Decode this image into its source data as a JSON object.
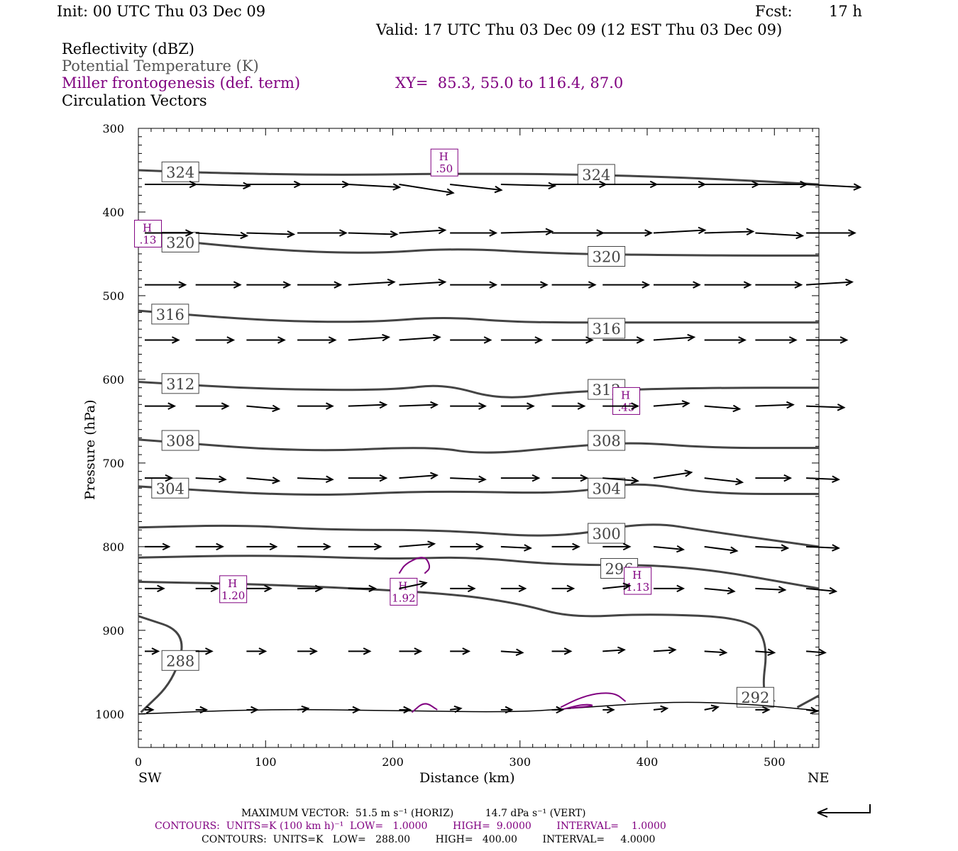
{
  "header": {
    "init": "Init: 00 UTC Thu 03 Dec 09",
    "fcst_label": "Fcst:",
    "fcst_value": "17 h",
    "valid": "Valid: 17 UTC Thu 03 Dec 09 (12 EST Thu 03 Dec 09)",
    "field1": "Reflectivity (dBZ)",
    "field2": "Potential Temperature (K)",
    "field3": "Miller frontogenesis (def. term)",
    "xy": "XY=  85.3, 55.0 to 116.4, 87.0",
    "field4": "Circulation Vectors"
  },
  "footer": {
    "max_vector": "MAXIMUM VECTOR:  51.5 m s⁻¹ (HORIZ)          14.7 dPa s⁻¹ (VERT)",
    "contours1": "CONTOURS:  UNITS=K (100 km h)⁻¹  LOW=   1.0000        HIGH=  9.0000        INTERVAL=    1.0000",
    "contours2": "CONTOURS:  UNITS=K   LOW=   288.00        HIGH=   400.00        INTERVAL=     4.0000"
  },
  "colors": {
    "theta": "#444444",
    "frontogenesis": "#800080",
    "vector": "#000000"
  },
  "chart_data": {
    "type": "cross-section",
    "xlabel": "Distance (km)",
    "ylabel": "Pressure (hPa)",
    "xlim": [
      0,
      535
    ],
    "ylim": [
      1040,
      300
    ],
    "x_ticks": [
      0,
      100,
      200,
      300,
      400,
      500
    ],
    "y_ticks": [
      300,
      400,
      500,
      600,
      700,
      800,
      900,
      1000
    ],
    "x_end_labels": {
      "left": "SW",
      "right": "NE"
    },
    "theta_contours": [
      {
        "value": 324,
        "label": "324",
        "points": [
          [
            0,
            350
          ],
          [
            50,
            353
          ],
          [
            150,
            356
          ],
          [
            250,
            354
          ],
          [
            350,
            355
          ],
          [
            450,
            360
          ],
          [
            535,
            367
          ]
        ],
        "labels_at": [
          [
            33,
            352
          ],
          [
            360,
            355
          ]
        ]
      },
      {
        "value": 320,
        "label": "320",
        "points": [
          [
            0,
            430
          ],
          [
            100,
            445
          ],
          [
            180,
            450
          ],
          [
            250,
            443
          ],
          [
            330,
            450
          ],
          [
            450,
            452
          ],
          [
            535,
            452
          ]
        ],
        "labels_at": [
          [
            33,
            436
          ],
          [
            368,
            453
          ]
        ]
      },
      {
        "value": 316,
        "label": "316",
        "points": [
          [
            0,
            518
          ],
          [
            100,
            530
          ],
          [
            180,
            532
          ],
          [
            240,
            525
          ],
          [
            300,
            532
          ],
          [
            380,
            532
          ],
          [
            535,
            532
          ]
        ],
        "labels_at": [
          [
            25,
            522
          ],
          [
            368,
            539
          ]
        ]
      },
      {
        "value": 312,
        "label": "312",
        "points": [
          [
            0,
            603
          ],
          [
            100,
            612
          ],
          [
            200,
            613
          ],
          [
            240,
            605
          ],
          [
            285,
            625
          ],
          [
            340,
            614
          ],
          [
            450,
            610
          ],
          [
            535,
            610
          ]
        ],
        "labels_at": [
          [
            33,
            605
          ],
          [
            368,
            612
          ]
        ]
      },
      {
        "value": 308,
        "label": "308",
        "points": [
          [
            0,
            672
          ],
          [
            130,
            687
          ],
          [
            230,
            680
          ],
          [
            270,
            690
          ],
          [
            340,
            680
          ],
          [
            390,
            675
          ],
          [
            450,
            682
          ],
          [
            535,
            682
          ]
        ],
        "labels_at": [
          [
            33,
            673
          ],
          [
            368,
            673
          ]
        ]
      },
      {
        "value": 304,
        "label": "304",
        "points": [
          [
            0,
            728
          ],
          [
            130,
            740
          ],
          [
            230,
            733
          ],
          [
            340,
            737
          ],
          [
            390,
            722
          ],
          [
            450,
            737
          ],
          [
            535,
            737
          ]
        ],
        "labels_at": [
          [
            25,
            730
          ],
          [
            368,
            730
          ]
        ]
      },
      {
        "value": 300,
        "label": "300",
        "points": [
          [
            0,
            777
          ],
          [
            80,
            774
          ],
          [
            150,
            780
          ],
          [
            240,
            780
          ],
          [
            330,
            790
          ],
          [
            400,
            770
          ],
          [
            450,
            782
          ],
          [
            535,
            800
          ]
        ],
        "labels_at": [
          [
            368,
            784
          ]
        ]
      },
      {
        "value": 296,
        "label": "296",
        "points": [
          [
            0,
            813
          ],
          [
            100,
            810
          ],
          [
            200,
            815
          ],
          [
            260,
            812
          ],
          [
            330,
            822
          ],
          [
            430,
            822
          ],
          [
            535,
            850
          ]
        ],
        "labels_at": [
          [
            378,
            826
          ]
        ]
      },
      {
        "value": 292,
        "label": "292",
        "points": [
          [
            0,
            842
          ],
          [
            100,
            845
          ],
          [
            240,
            855
          ],
          [
            300,
            868
          ],
          [
            340,
            885
          ],
          [
            400,
            880
          ],
          [
            480,
            885
          ],
          [
            495,
            915
          ],
          [
            490,
            975
          ],
          [
            500,
            985
          ]
        ],
        "labels_at": [
          [
            485,
            980
          ]
        ]
      },
      {
        "value": 288,
        "label": "288",
        "points": [
          [
            0,
            883
          ],
          [
            38,
            902
          ],
          [
            28,
            960
          ],
          [
            2,
            998
          ]
        ],
        "labels_at": [
          [
            33,
            936
          ]
        ]
      }
    ],
    "bottom_line": [
      [
        0,
        1000
      ],
      [
        100,
        994
      ],
      [
        200,
        996
      ],
      [
        300,
        998
      ],
      [
        350,
        992
      ],
      [
        420,
        985
      ],
      [
        480,
        988
      ],
      [
        535,
        996
      ]
    ],
    "bottom_right_arc": [
      [
        518,
        992
      ],
      [
        535,
        978
      ]
    ],
    "frontogenesis_maxima": [
      {
        "label": "H",
        "value": ".50",
        "x": 240,
        "p": 340
      },
      {
        "label": "H",
        "value": ".13",
        "x": 7,
        "p": 425
      },
      {
        "label": "H",
        "value": ".45",
        "x": 383,
        "p": 625
      },
      {
        "label": "H",
        "value": "1.20",
        "x": 74,
        "p": 850
      },
      {
        "label": "H",
        "value": "1.92",
        "x": 208,
        "p": 853
      },
      {
        "label": "H",
        "value": "1.13",
        "x": 392,
        "p": 840
      }
    ],
    "frontogenesis_contours": [
      {
        "points": [
          [
            205,
            832
          ],
          [
            210,
            820
          ],
          [
            225,
            810
          ],
          [
            230,
            825
          ],
          [
            225,
            832
          ]
        ]
      },
      {
        "points": [
          [
            215,
            998
          ],
          [
            225,
            985
          ],
          [
            235,
            995
          ]
        ]
      },
      {
        "points": [
          [
            332,
            992
          ],
          [
            345,
            982
          ],
          [
            360,
            975
          ],
          [
            375,
            975
          ],
          [
            383,
            985
          ]
        ]
      },
      {
        "points": [
          [
            332,
            995
          ],
          [
            350,
            988
          ],
          [
            360,
            990
          ],
          [
            340,
            993
          ]
        ]
      }
    ],
    "vector_rows": [
      {
        "p": 367,
        "u": [
          38,
          40,
          40,
          38,
          38,
          40,
          38,
          40,
          40,
          40,
          38,
          40,
          38,
          40
        ],
        "w": [
          0,
          -0.5,
          0,
          0,
          -1,
          -3,
          -2,
          -0.5,
          0,
          0,
          0,
          0,
          0,
          -1
        ]
      },
      {
        "p": 425,
        "u": [
          35,
          38,
          35,
          36,
          36,
          34,
          34,
          38,
          38,
          36,
          38,
          36,
          35,
          36
        ],
        "w": [
          0,
          -1,
          -0.5,
          0,
          -0.5,
          1,
          0,
          0.5,
          0,
          0,
          1,
          0.5,
          -1,
          0
        ]
      },
      {
        "p": 487,
        "u": [
          30,
          33,
          32,
          32,
          34,
          34,
          34,
          34,
          32,
          34,
          34,
          34,
          34,
          34
        ],
        "w": [
          0,
          0,
          0,
          0,
          1,
          1,
          0,
          0,
          0,
          0,
          0,
          0,
          0,
          1
        ]
      },
      {
        "p": 553,
        "u": [
          25,
          28,
          28,
          28,
          30,
          30,
          30,
          30,
          30,
          30,
          30,
          30,
          30,
          30
        ],
        "w": [
          0,
          0,
          0,
          0,
          1,
          1,
          0,
          0,
          0,
          0,
          1,
          0,
          0,
          0
        ]
      },
      {
        "p": 632,
        "u": [
          22,
          24,
          24,
          26,
          28,
          28,
          26,
          24,
          24,
          26,
          26,
          26,
          28,
          28
        ],
        "w": [
          0,
          0,
          -1,
          0,
          0.5,
          0.5,
          0,
          0,
          0,
          0,
          1,
          -1,
          0.5,
          -0.5
        ]
      },
      {
        "p": 718,
        "u": [
          20,
          22,
          24,
          26,
          28,
          28,
          26,
          28,
          26,
          26,
          28,
          28,
          26,
          24
        ],
        "w": [
          0,
          -0.5,
          -1,
          -0.5,
          0,
          1,
          -0.5,
          0,
          0,
          -1,
          2,
          -1.5,
          0,
          -0.5
        ]
      },
      {
        "p": 800,
        "u": [
          18,
          20,
          22,
          24,
          24,
          26,
          24,
          22,
          20,
          20,
          22,
          24,
          24,
          24
        ],
        "w": [
          0,
          0,
          0,
          0,
          0,
          1,
          0,
          -0.5,
          0,
          0,
          -1,
          -1.5,
          -0.5,
          -0.5
        ]
      },
      {
        "p": 850,
        "u": [
          14,
          16,
          18,
          18,
          20,
          20,
          18,
          18,
          16,
          20,
          22,
          22,
          22,
          22
        ],
        "w": [
          0,
          0,
          0,
          0,
          0,
          2,
          0,
          0,
          0,
          1,
          0,
          -1,
          -0.5,
          -1
        ]
      },
      {
        "p": 925,
        "u": [
          10,
          12,
          14,
          14,
          16,
          16,
          14,
          16,
          14,
          16,
          16,
          16,
          14,
          14
        ],
        "w": [
          0,
          0,
          0,
          0,
          0,
          0,
          0,
          -0.5,
          0,
          0.5,
          0.5,
          -0.5,
          -0.5,
          -0.5
        ]
      },
      {
        "p": 995,
        "u": [
          6,
          8,
          8,
          8,
          8,
          8,
          8,
          8,
          8,
          8,
          10,
          10,
          10,
          8
        ],
        "w": [
          0,
          0,
          0,
          0.5,
          0,
          0,
          0.5,
          0,
          0,
          0,
          0.5,
          1,
          0,
          -0.5
        ]
      }
    ],
    "vector_x": [
      5,
      45,
      85,
      125,
      165,
      205,
      245,
      285,
      325,
      365,
      405,
      445,
      485,
      525
    ]
  }
}
